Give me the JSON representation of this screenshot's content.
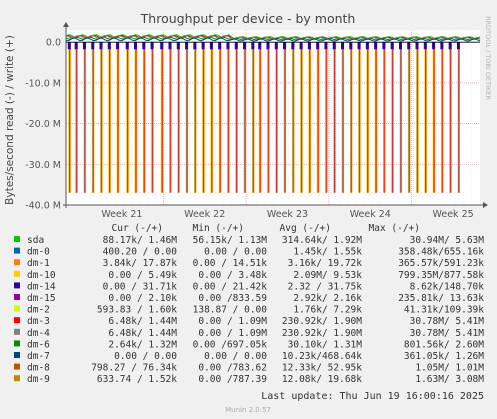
{
  "chart_data": {
    "type": "line",
    "title": "Throughput per device - by month",
    "ylabel": "Bytes/second read (-) / write (+)",
    "side_label": "RRDTOOL / TOBI OETIKER",
    "ylim": [
      -40000000,
      3000000
    ],
    "y_ticks": [
      {
        "value": 0,
        "label": "0.0"
      },
      {
        "value": -10000000,
        "label": "-10.0 M"
      },
      {
        "value": -20000000,
        "label": "-20.0 M"
      },
      {
        "value": -30000000,
        "label": "-30.0 M"
      },
      {
        "value": -40000000,
        "label": "-40.0 M"
      }
    ],
    "x_ticks": [
      "Week 21",
      "Week 22",
      "Week 23",
      "Week 24",
      "Week 25"
    ],
    "read_spike_value": -37000000,
    "read_spike_days": [
      1,
      3.5,
      6.5,
      9.5,
      12.5,
      15.5,
      18.5,
      22,
      25,
      28,
      31,
      34.5,
      37.5,
      40.5,
      43.5,
      46.5,
      49.5,
      52.5,
      55.5,
      58.5,
      61.5,
      64.5,
      67.5,
      70,
      73,
      76,
      79,
      82,
      85,
      88,
      91,
      94,
      97,
      100,
      103,
      106,
      109,
      112,
      115,
      118,
      121,
      124,
      127,
      130,
      133,
      136,
      139,
      142
    ],
    "total_days": 150,
    "table_headers": [
      "Cur (-/+)",
      "Min (-/+)",
      "Avg (-/+)",
      "Max (-/+)"
    ],
    "series": [
      {
        "name": "sda",
        "color": "#00cc00",
        "cur": "88.17k/  1.46M",
        "min": "56.15k/  1.13M",
        "avg": "314.64k/  1.92M",
        "max": "30.94M/  5.63M"
      },
      {
        "name": "dm-0",
        "color": "#0066b3",
        "cur": "400.20 /  0.00 ",
        "min": "0.00 /  0.00 ",
        "avg": "1.45k/  1.55k",
        "max": "358.48k/655.16k"
      },
      {
        "name": "dm-1",
        "color": "#ff8000",
        "cur": "3.84k/ 17.87k",
        "min": "0.00 / 14.51k",
        "avg": "3.16k/ 19.72k",
        "max": "365.57k/591.23k"
      },
      {
        "name": "dm-10",
        "color": "#ffcc00",
        "cur": "0.00 /  5.49k",
        "min": "0.00 /  3.48k",
        "avg": "2.09M/  9.53k",
        "max": "799.35M/877.58k"
      },
      {
        "name": "dm-14",
        "color": "#330099",
        "cur": "0.00 / 31.71k",
        "min": "0.00 / 21.42k",
        "avg": "2.32 / 31.75k",
        "max": "8.62k/148.70k"
      },
      {
        "name": "dm-15",
        "color": "#990099",
        "cur": "0.00 /  2.10k",
        "min": "0.00 /833.59 ",
        "avg": "2.92k/  2.16k",
        "max": "235.81k/ 13.63k"
      },
      {
        "name": "dm-2",
        "color": "#ccff00",
        "cur": "593.83 /  1.60k",
        "min": "138.87 /  0.00 ",
        "avg": "1.76k/  7.29k",
        "max": "41.31k/109.39k"
      },
      {
        "name": "dm-3",
        "color": "#ff0000",
        "cur": "6.48k/  1.44M",
        "min": "0.00 /  1.09M",
        "avg": "230.92k/  1.90M",
        "max": "30.78M/  5.41M"
      },
      {
        "name": "dm-4",
        "color": "#808080",
        "cur": "6.48k/  1.44M",
        "min": "0.00 /  1.09M",
        "avg": "230.92k/  1.90M",
        "max": "30.78M/  5.41M"
      },
      {
        "name": "dm-6",
        "color": "#008f00",
        "cur": "2.64k/  1.32M",
        "min": "0.00 /697.05k",
        "avg": "30.10k/  1.31M",
        "max": "801.56k/  2.60M"
      },
      {
        "name": "dm-7",
        "color": "#00487d",
        "cur": "0.00 /  0.00 ",
        "min": "0.00 /  0.00 ",
        "avg": "10.23k/468.64k",
        "max": "361.05k/  1.26M"
      },
      {
        "name": "dm-8",
        "color": "#b35a00",
        "cur": "798.27 / 76.34k",
        "min": "0.00 /783.62 ",
        "avg": "12.33k/ 52.95k",
        "max": "1.05M/  1.01M"
      },
      {
        "name": "dm-9",
        "color": "#b38f00",
        "cur": "633.74 /  1.52k",
        "min": "0.00 /787.39 ",
        "avg": "12.08k/ 19.68k",
        "max": "1.63M/  3.08M"
      }
    ],
    "last_update": "Last update: Thu Jun 19 16:00:16 2025",
    "footer": "Munin 2.0.57"
  }
}
